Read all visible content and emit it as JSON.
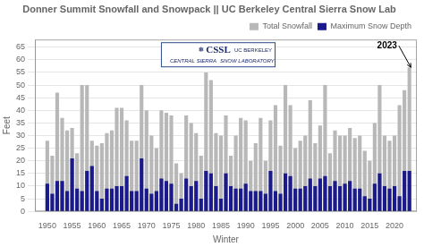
{
  "chart_data": {
    "type": "bar",
    "title": "Donner Summit Snowfall and Snowpack || UC Berkeley Central Sierra Snow Lab",
    "xlabel": "Winter",
    "ylabel": "Feet",
    "x": [
      1950,
      1951,
      1952,
      1953,
      1954,
      1955,
      1956,
      1957,
      1958,
      1959,
      1960,
      1961,
      1962,
      1963,
      1964,
      1965,
      1966,
      1967,
      1968,
      1969,
      1970,
      1971,
      1972,
      1973,
      1974,
      1975,
      1976,
      1977,
      1978,
      1979,
      1980,
      1981,
      1982,
      1983,
      1984,
      1985,
      1986,
      1987,
      1988,
      1989,
      1990,
      1991,
      1992,
      1993,
      1994,
      1995,
      1996,
      1997,
      1998,
      1999,
      2000,
      2001,
      2002,
      2003,
      2004,
      2005,
      2006,
      2007,
      2008,
      2009,
      2010,
      2011,
      2012,
      2013,
      2014,
      2015,
      2016,
      2017,
      2018,
      2019,
      2020,
      2021,
      2022,
      2023
    ],
    "series": [
      {
        "name": "Total Snowfall",
        "color": "#b8b8b8",
        "values": [
          28,
          22,
          47,
          37,
          32,
          33,
          23,
          50,
          50,
          28,
          26,
          27,
          31,
          32,
          41,
          41,
          36,
          28,
          28,
          50,
          40,
          30,
          25,
          40,
          39,
          38,
          19,
          15,
          38,
          35,
          31,
          22,
          55,
          52,
          31,
          30,
          38,
          22,
          30,
          37,
          36,
          20,
          27,
          37,
          20,
          36,
          42,
          26,
          50,
          42,
          25,
          28,
          30,
          44,
          27,
          34,
          50,
          23,
          32,
          30,
          30,
          33,
          29,
          30,
          24,
          20,
          35,
          50,
          30,
          28,
          30,
          42,
          48,
          57
        ]
      },
      {
        "name": "Maximum Snow Depth",
        "color": "#1a1a8c",
        "values": [
          11,
          7,
          12,
          12,
          8,
          21,
          9,
          8,
          16,
          18,
          8,
          5,
          9,
          9,
          10,
          10,
          14,
          8,
          8,
          21,
          9,
          7,
          8,
          13,
          12,
          11,
          3,
          5,
          13,
          10,
          12,
          5,
          16,
          15,
          10,
          5,
          15,
          10,
          9,
          9,
          11,
          8,
          8,
          8,
          7,
          16,
          8,
          7,
          15,
          14,
          9,
          9,
          10,
          13,
          10,
          13,
          14,
          10,
          12,
          10,
          11,
          12,
          9,
          9,
          6,
          5,
          11,
          15,
          10,
          9,
          10,
          6,
          16,
          16
        ]
      }
    ],
    "xlim": [
      1947.5,
      2024.5
    ],
    "xticks": [
      1950,
      1955,
      1960,
      1965,
      1970,
      1975,
      1980,
      1985,
      1990,
      1995,
      2000,
      2005,
      2010,
      2015,
      2020
    ],
    "ylim": [
      0,
      68
    ],
    "yticks": [
      0,
      5,
      10,
      15,
      20,
      25,
      30,
      35,
      40,
      45,
      50,
      55,
      60,
      65
    ],
    "grid": "y",
    "legend": "upper right",
    "annotations": [
      {
        "text": "2023",
        "x": 2018.5,
        "y": 64.5,
        "arrow_x": 2023.3,
        "arrow_y": 57
      },
      {
        "text": "CSSL"
      },
      {
        "text": "❅"
      },
      {
        "text": "CENTRAL SIERRA"
      },
      {
        "text": "SNOW LABORATORY"
      },
      {
        "text": "UC BERKELEY"
      }
    ]
  }
}
